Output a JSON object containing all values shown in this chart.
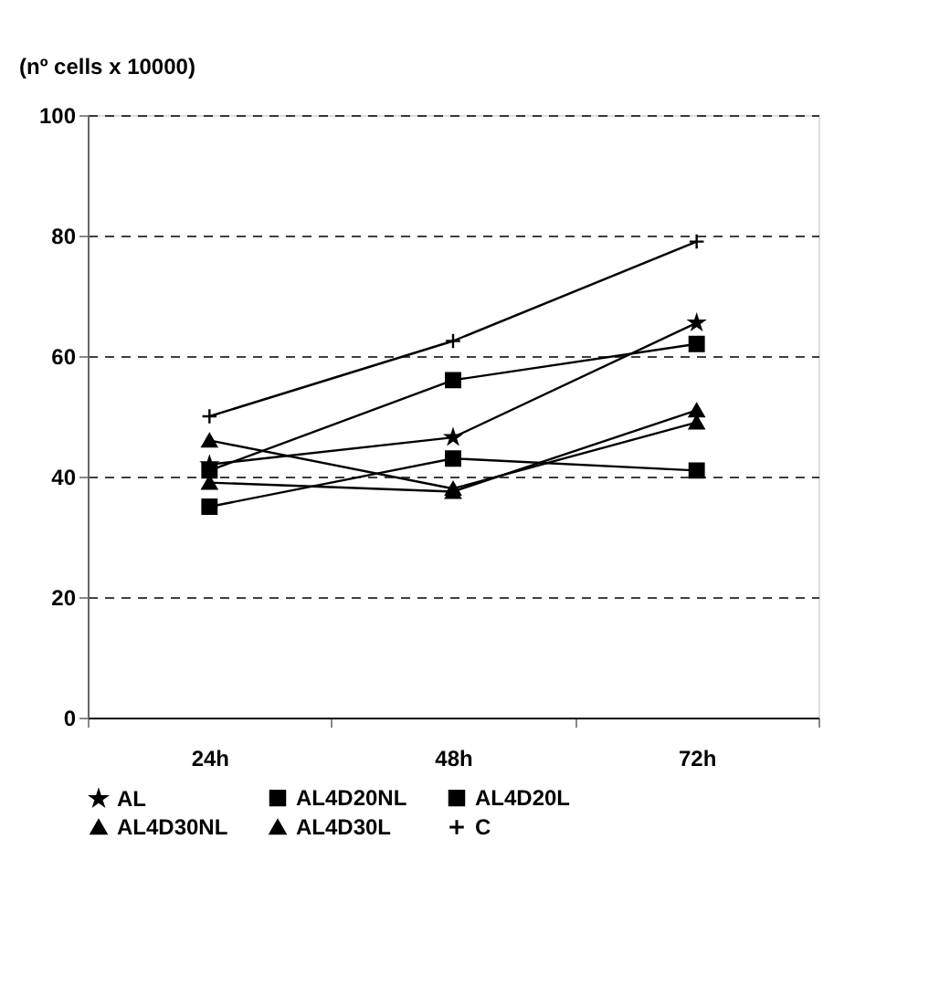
{
  "chart_data": {
    "type": "line",
    "ylabel": "(nº cells x 10000)",
    "categories": [
      "24h",
      "48h",
      "72h"
    ],
    "series": [
      {
        "name": "AL",
        "color": "#000000",
        "marker": "star",
        "values": [
          42,
          46.5,
          65.5
        ]
      },
      {
        "name": "AL4D20NL",
        "color": "#000000",
        "marker": "square",
        "values": [
          41,
          56,
          62
        ]
      },
      {
        "name": "AL4D20L",
        "color": "#000000",
        "marker": "square",
        "values": [
          35,
          43,
          41
        ]
      },
      {
        "name": "AL4D30NL",
        "color": "#000000",
        "marker": "triangle",
        "values": [
          39,
          37.5,
          51
        ]
      },
      {
        "name": "AL4D30L",
        "color": "#000000",
        "marker": "triangle",
        "values": [
          46,
          38,
          49
        ]
      },
      {
        "name": "C",
        "color": "#000000",
        "marker": "cross",
        "values": [
          50,
          62.5,
          79
        ]
      }
    ],
    "ylim": [
      0,
      100
    ],
    "yticks": [
      0,
      20,
      40,
      60,
      80,
      100
    ],
    "grid": "y",
    "legend": "bottom",
    "line_style": "solid"
  }
}
